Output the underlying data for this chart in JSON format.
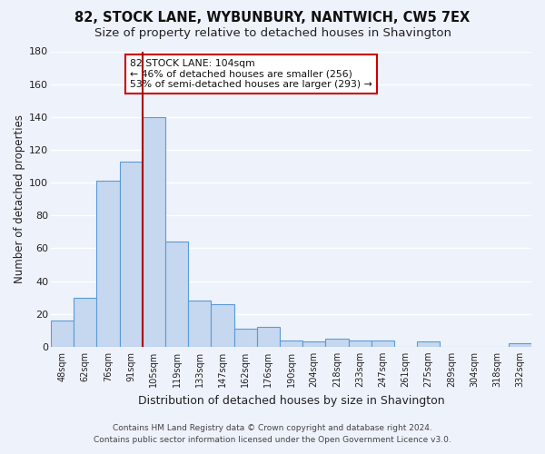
{
  "title": "82, STOCK LANE, WYBUNBURY, NANTWICH, CW5 7EX",
  "subtitle": "Size of property relative to detached houses in Shavington",
  "xlabel": "Distribution of detached houses by size in Shavington",
  "ylabel": "Number of detached properties",
  "categories": [
    "48sqm",
    "62sqm",
    "76sqm",
    "91sqm",
    "105sqm",
    "119sqm",
    "133sqm",
    "147sqm",
    "162sqm",
    "176sqm",
    "190sqm",
    "204sqm",
    "218sqm",
    "233sqm",
    "247sqm",
    "261sqm",
    "275sqm",
    "289sqm",
    "304sqm",
    "318sqm",
    "332sqm"
  ],
  "values": [
    16,
    30,
    101,
    113,
    140,
    64,
    28,
    26,
    11,
    12,
    4,
    3,
    5,
    4,
    4,
    0,
    3,
    0,
    0,
    0,
    2
  ],
  "bar_color": "#c5d8f0",
  "bar_edge_color": "#5b9bd5",
  "background_color": "#eef2fb",
  "grid_color": "#ffffff",
  "vline_color": "#aa0000",
  "annotation_text": "82 STOCK LANE: 104sqm\n← 46% of detached houses are smaller (256)\n53% of semi-detached houses are larger (293) →",
  "annotation_box_color": "#ffffff",
  "annotation_box_edge": "#cc0000",
  "footer_line1": "Contains HM Land Registry data © Crown copyright and database right 2024.",
  "footer_line2": "Contains public sector information licensed under the Open Government Licence v3.0.",
  "ylim": [
    0,
    180
  ],
  "yticks": [
    0,
    20,
    40,
    60,
    80,
    100,
    120,
    140,
    160,
    180
  ],
  "title_fontsize": 10.5,
  "subtitle_fontsize": 9.5,
  "vline_x_index": 3.5
}
